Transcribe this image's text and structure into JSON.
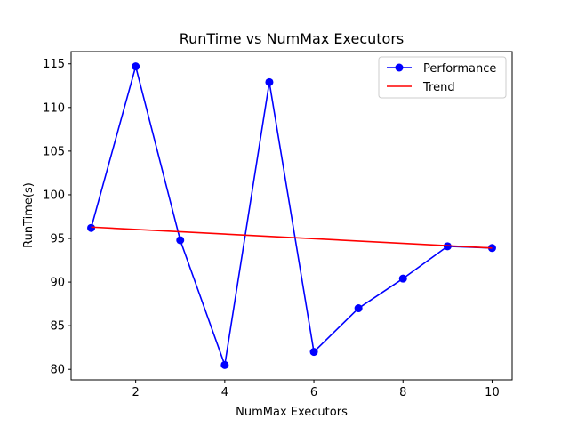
{
  "chart_data": {
    "type": "line",
    "title": "RunTime vs NumMax Executors",
    "xlabel": "NumMax Executors",
    "ylabel": "RunTime(s)",
    "xlim": [
      0.55,
      10.45
    ],
    "ylim": [
      78.8,
      116.4
    ],
    "xticks": [
      2,
      4,
      6,
      8,
      10
    ],
    "yticks": [
      80,
      85,
      90,
      95,
      100,
      105,
      110,
      115
    ],
    "grid": false,
    "legend_position": "top-right",
    "series": [
      {
        "name": "Performance",
        "color": "#0000ff",
        "marker": "circle",
        "x": [
          1,
          2,
          3,
          4,
          5,
          6,
          7,
          8,
          9,
          10
        ],
        "y": [
          96.2,
          114.7,
          94.8,
          80.5,
          112.9,
          82.0,
          87.0,
          90.4,
          94.1,
          93.9
        ]
      },
      {
        "name": "Trend",
        "color": "#ff0000",
        "marker": "none",
        "x": [
          1,
          10
        ],
        "y": [
          96.3,
          93.9
        ]
      }
    ]
  }
}
